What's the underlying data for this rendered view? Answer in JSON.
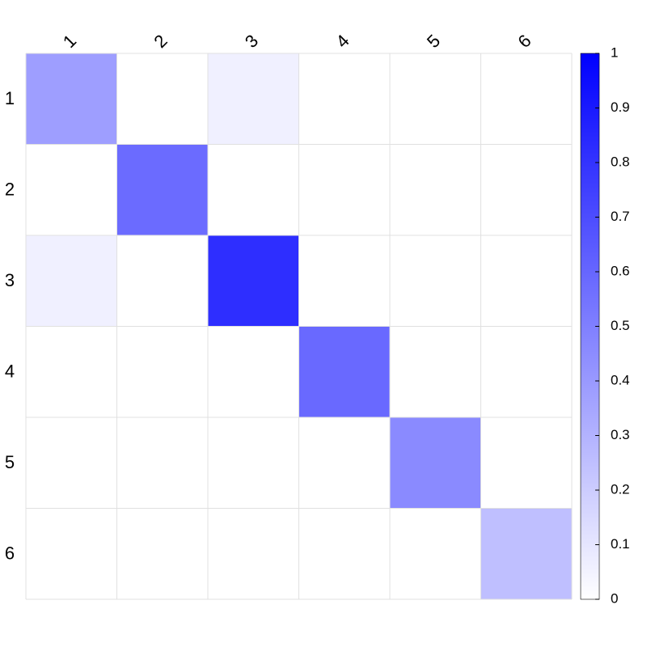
{
  "chart_data": {
    "type": "heatmap",
    "title": "",
    "xlabel": "",
    "ylabel": "",
    "row_labels": [
      "1",
      "2",
      "3",
      "4",
      "5",
      "6"
    ],
    "col_labels": [
      "1",
      "2",
      "3",
      "4",
      "5",
      "6"
    ],
    "values": [
      [
        0.38,
        0,
        0.06,
        0,
        0,
        0
      ],
      [
        0,
        0.58,
        0,
        0,
        0,
        0
      ],
      [
        0.06,
        0,
        0.82,
        0,
        0,
        0
      ],
      [
        0,
        0,
        0,
        0.59,
        0,
        0
      ],
      [
        0,
        0,
        0,
        0,
        0.46,
        0
      ],
      [
        0,
        0,
        0,
        0,
        0,
        0.25
      ]
    ],
    "colorbar": {
      "range": [
        0,
        1
      ],
      "ticks": [
        "0",
        "0.1",
        "0.2",
        "0.3",
        "0.4",
        "0.5",
        "0.6",
        "0.7",
        "0.8",
        "0.9",
        "1"
      ],
      "color_low": "#ffffff",
      "color_high": "#0000ff",
      "placement": "right"
    },
    "grid": true,
    "grid_color": "#e0e0e0",
    "x_labels_position": "top",
    "x_labels_rotation": "-45"
  }
}
